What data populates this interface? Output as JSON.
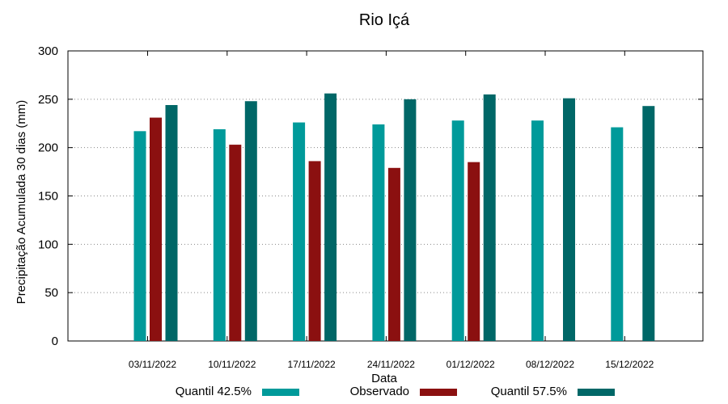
{
  "chart_data": {
    "type": "bar",
    "title": "Rio Içá",
    "xlabel": "Data",
    "ylabel": "Precipitação Acumulada 30 dias (mm)",
    "ylim": [
      0,
      300
    ],
    "yticks": [
      0,
      50,
      100,
      150,
      200,
      250,
      300
    ],
    "grid": true,
    "legend_position": "bottom",
    "categories": [
      "03/11/2022",
      "10/11/2022",
      "17/11/2022",
      "24/11/2022",
      "01/12/2022",
      "08/12/2022",
      "15/12/2022"
    ],
    "series": [
      {
        "name": "Quantil 42.5%",
        "color": "#009a9a",
        "values": [
          217,
          219,
          226,
          224,
          228,
          228,
          221
        ]
      },
      {
        "name": "Observado",
        "color": "#8b1010",
        "values": [
          231,
          203,
          186,
          179,
          185,
          null,
          null
        ]
      },
      {
        "name": "Quantil 57.5%",
        "color": "#006767",
        "values": [
          244,
          248,
          256,
          250,
          255,
          251,
          243
        ]
      }
    ]
  }
}
